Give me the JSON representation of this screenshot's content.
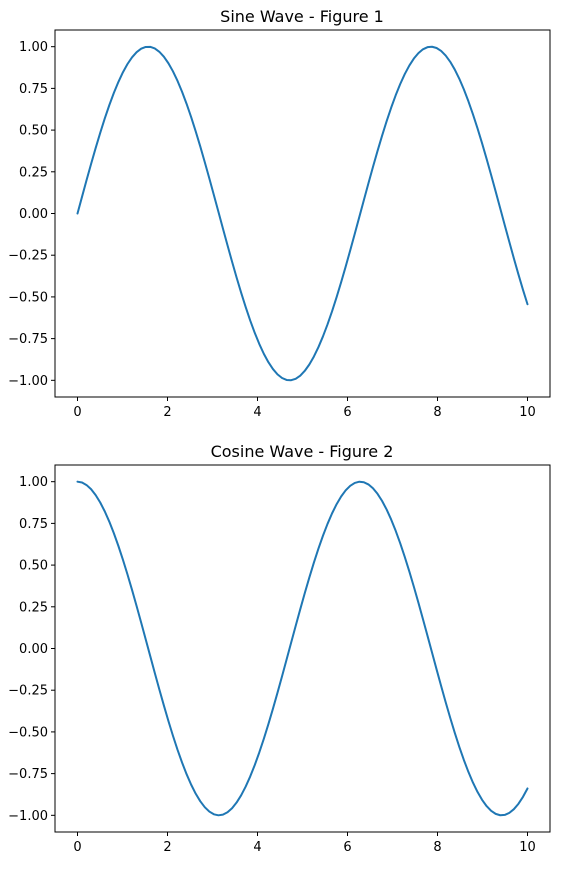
{
  "chart_data": [
    {
      "type": "line",
      "title": "Sine Wave - Figure 1",
      "xlabel": "",
      "ylabel": "",
      "function": "sin",
      "xlim": [
        -0.5,
        10.5
      ],
      "ylim": [
        -1.1,
        1.1
      ],
      "x_range": [
        0,
        10
      ],
      "xticks": [
        0,
        2,
        4,
        6,
        8,
        10
      ],
      "yticks": [
        1.0,
        0.75,
        0.5,
        0.25,
        0.0,
        -0.25,
        -0.5,
        -0.75,
        -1.0
      ],
      "xtick_labels": [
        "0",
        "2",
        "4",
        "6",
        "8",
        "10"
      ],
      "ytick_labels": [
        "1.00",
        "0.75",
        "0.50",
        "0.25",
        "0.00",
        "−0.25",
        "−0.50",
        "−0.75",
        "−1.00"
      ],
      "series": [
        {
          "color": "#1f77b4",
          "x_start": 0,
          "x_end": 10,
          "y_start": 0.0,
          "y_end": -0.544,
          "peaks_at_x": [
            1.57,
            7.85
          ],
          "troughs_at_x": [
            4.71
          ]
        }
      ],
      "grid": false,
      "legend": "none"
    },
    {
      "type": "line",
      "title": "Cosine Wave - Figure 2",
      "xlabel": "",
      "ylabel": "",
      "function": "cos",
      "xlim": [
        -0.5,
        10.5
      ],
      "ylim": [
        -1.1,
        1.1
      ],
      "x_range": [
        0,
        10
      ],
      "xticks": [
        0,
        2,
        4,
        6,
        8,
        10
      ],
      "yticks": [
        1.0,
        0.75,
        0.5,
        0.25,
        0.0,
        -0.25,
        -0.5,
        -0.75,
        -1.0
      ],
      "xtick_labels": [
        "0",
        "2",
        "4",
        "6",
        "8",
        "10"
      ],
      "ytick_labels": [
        "1.00",
        "0.75",
        "0.50",
        "0.25",
        "0.00",
        "−0.25",
        "−0.50",
        "−0.75",
        "−1.00"
      ],
      "series": [
        {
          "color": "#1f77b4",
          "x_start": 0,
          "x_end": 10,
          "y_start": 1.0,
          "y_end": -0.839,
          "peaks_at_x": [
            0,
            6.28
          ],
          "troughs_at_x": [
            3.14,
            9.42
          ]
        }
      ],
      "grid": false,
      "legend": "none"
    }
  ]
}
